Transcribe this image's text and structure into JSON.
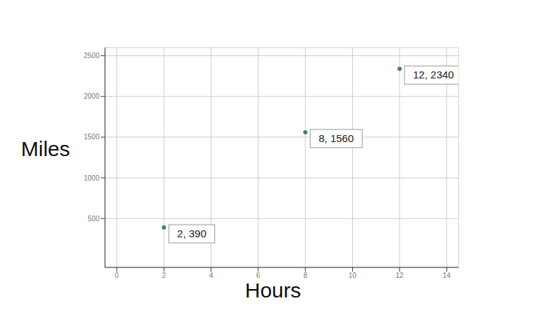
{
  "chart_data": {
    "type": "scatter",
    "x_label": "Hours",
    "y_label": "Miles",
    "x": [
      2,
      8,
      12
    ],
    "values": [
      390,
      1560,
      2340
    ],
    "value_labels": [
      "2, 390",
      "8, 1560",
      "12, 2340"
    ],
    "color": "#3a8a4f",
    "xlim": [
      -0.5,
      14.5
    ],
    "ylim": [
      -100,
      2600
    ],
    "xticks": [
      0,
      2,
      4,
      6,
      8,
      10,
      12,
      14
    ],
    "yticks": [
      500,
      1000,
      1500,
      2000,
      2500
    ],
    "grid": true,
    "data_labels": true
  }
}
